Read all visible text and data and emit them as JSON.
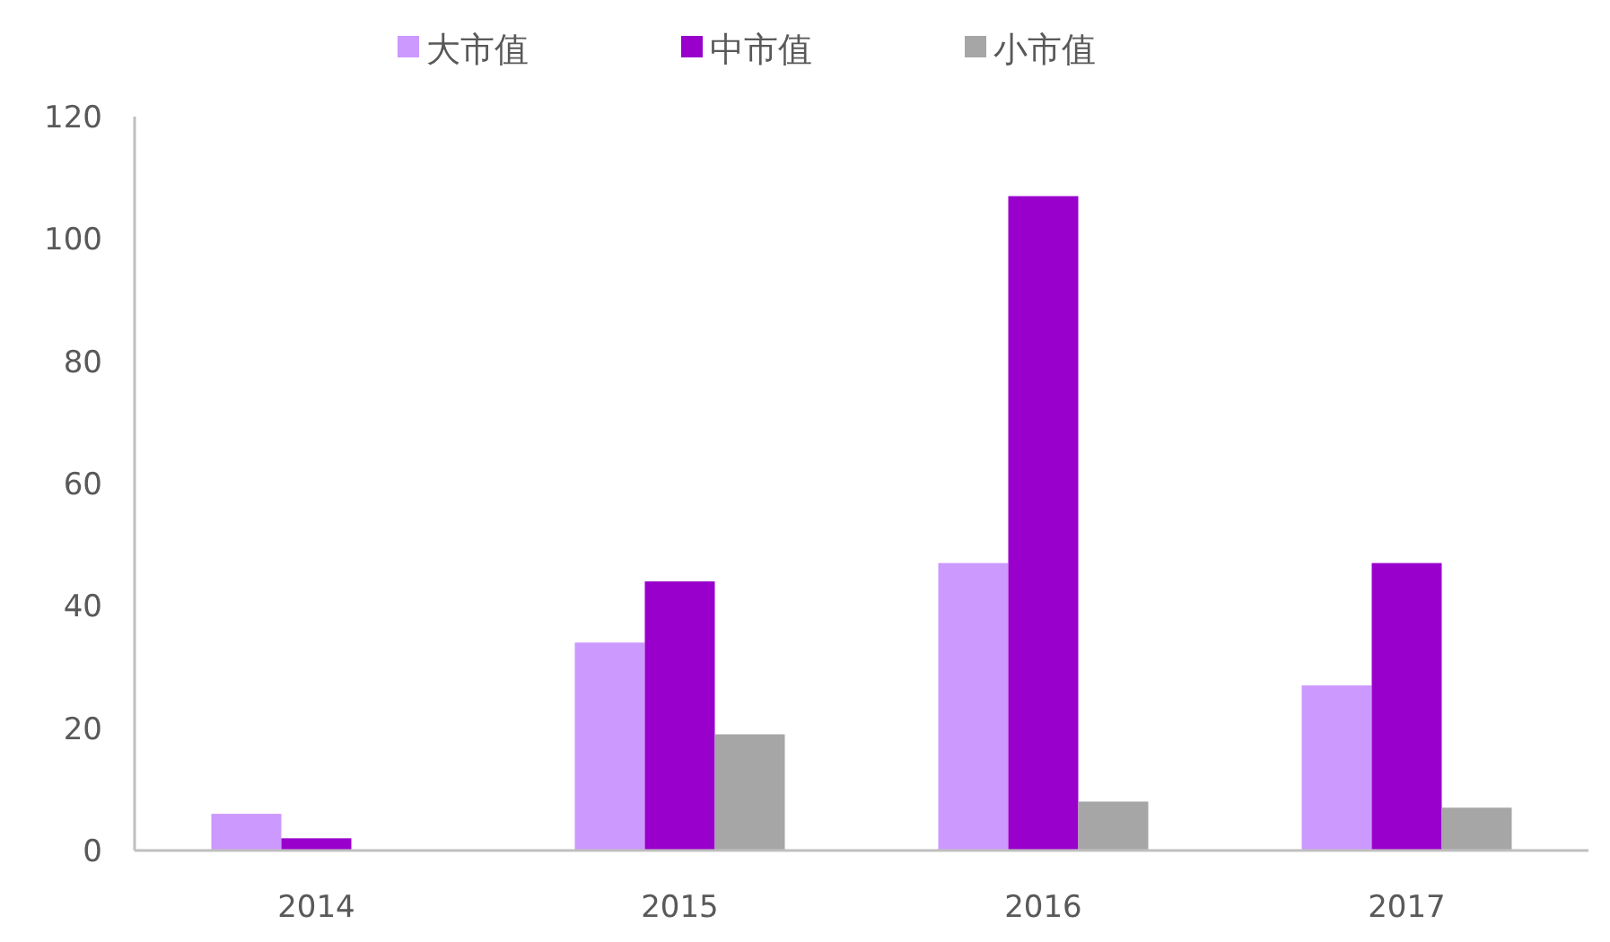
{
  "chart_data": {
    "type": "bar",
    "categories": [
      "2014",
      "2015",
      "2016",
      "2017"
    ],
    "series": [
      {
        "name": "大市值",
        "color": "#cc99ff",
        "values": [
          6,
          34,
          47,
          27
        ]
      },
      {
        "name": "中市值",
        "color": "#9900cc",
        "values": [
          2,
          44,
          107,
          47
        ]
      },
      {
        "name": "小市值",
        "color": "#a6a6a6",
        "values": [
          0,
          19,
          8,
          7
        ]
      }
    ],
    "ylim": [
      0,
      120
    ],
    "yticks": [
      0,
      20,
      40,
      60,
      80,
      100,
      120
    ],
    "legend": "top",
    "grid": false
  }
}
